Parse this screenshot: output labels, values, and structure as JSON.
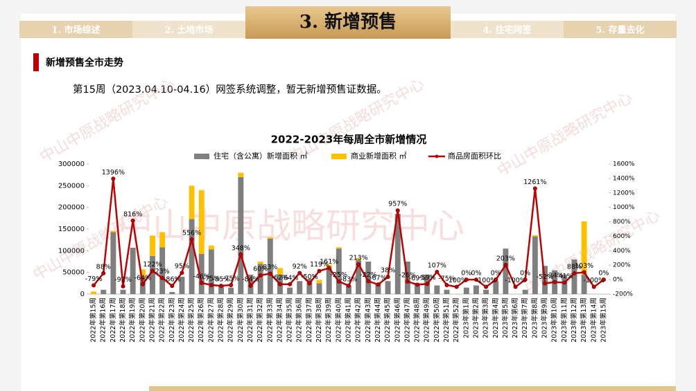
{
  "tabs": [
    "1. 市场综述",
    "2. 土地市场",
    "3. 新增预售",
    "4. 住宅网签",
    "5. 存量去化"
  ],
  "active_tab": 2,
  "section_title": "新增预售全市走势",
  "note": "第15周（2023.04.10-04.16）网签系统调整，暂无新增预售证数据。",
  "watermark": "中山中原战略研究中心",
  "chart_data": {
    "type": "bar-line",
    "title": "2022-2023年每周全市新增情况",
    "categories": [
      "2022年第15周",
      "2022年第16周",
      "2022年第17周",
      "2022年第18周",
      "2022年第19周",
      "2022年第20周",
      "2022年第21周",
      "2022年第22周",
      "2022年第23周",
      "2022年第24周",
      "2022年第25周",
      "2022年第26周",
      "2022年第27周",
      "2022年第28周",
      "2022年第29周",
      "2022年第30周",
      "2022年第31周",
      "2022年第32周",
      "2022年第33周",
      "2022年第34周",
      "2022年第35周",
      "2022年第36周",
      "2022年第37周",
      "2022年第38周",
      "2022年第39周",
      "2022年第40周",
      "2022年第41周",
      "2022年第42周",
      "2022年第43周",
      "2022年第44周",
      "2022年第45周",
      "2022年第46周",
      "2022年第47周",
      "2022年第48周",
      "2022年第49周",
      "2022年第50周",
      "2022年第51周",
      "2022年第52周",
      "2023年第1周",
      "2023年第2周",
      "2023年第3周",
      "2023年第4周",
      "2023年第5周",
      "2023年第6周",
      "2023年第7周",
      "2023年第8周",
      "2023年第9周",
      "2023年第10周",
      "2023年第11周",
      "2023年第12周",
      "2023年第13周",
      "2023年第14周",
      "2023年第15周"
    ],
    "series": [
      {
        "name": "住宅（含公寓）新增面积 ㎡",
        "type": "bar",
        "color": "#7f7f7f",
        "values": [
          0,
          10000,
          143000,
          10000,
          107000,
          40000,
          88000,
          108000,
          5000,
          40000,
          173000,
          93000,
          103000,
          20000,
          15000,
          270000,
          45000,
          70000,
          128000,
          45000,
          15000,
          30000,
          35000,
          25000,
          60000,
          105000,
          20000,
          78000,
          75000,
          25000,
          30000,
          185000,
          75000,
          25000,
          45000,
          20000,
          10000,
          0,
          15000,
          20000,
          10000,
          30000,
          105000,
          0,
          10000,
          133000,
          65000,
          55000,
          45000,
          80000,
          45000,
          0,
          0
        ]
      },
      {
        "name": "商业新增面积 ㎡",
        "type": "bar",
        "color": "#ffc000",
        "values": [
          6000,
          0,
          3000,
          0,
          0,
          17000,
          47000,
          35000,
          0,
          0,
          77000,
          147000,
          9000,
          0,
          0,
          10000,
          0,
          5000,
          3000,
          15000,
          0,
          0,
          0,
          8000,
          8000,
          3000,
          0,
          5000,
          0,
          0,
          0,
          0,
          0,
          0,
          0,
          0,
          0,
          0,
          0,
          0,
          0,
          0,
          0,
          0,
          0,
          3000,
          0,
          0,
          0,
          0,
          123000,
          0,
          0
        ]
      },
      {
        "name": "商品房面积环比",
        "type": "line",
        "axis": "y2",
        "color": "#c00000",
        "values": [
          -79,
          88,
          1396,
          -92,
          816,
          -64,
          122,
          23,
          -86,
          95,
          556,
          -46,
          -75,
          -85,
          -75,
          348,
          -84,
          60,
          83,
          -62,
          -64,
          92,
          -50,
          119,
          161,
          -25,
          -83,
          213,
          -22,
          -67,
          38,
          957,
          -26,
          -69,
          -59,
          107,
          -75,
          -100,
          0,
          0,
          -100,
          0,
          203,
          -100,
          0,
          1261,
          -52,
          -34,
          -41,
          88,
          103,
          -100,
          0
        ],
        "value_labels": [
          "-79%",
          "88%",
          "1396%",
          "-92%",
          "816%",
          "-64%",
          "122%",
          "23%",
          "-86%",
          "95%",
          "556%",
          "-46%",
          "-75%",
          "-85%",
          "-75%",
          "348%",
          "-84%",
          "60%",
          "83%",
          "-62%",
          "-64%",
          "92%",
          "-50%",
          "119%",
          "161%",
          "-25%",
          "-83%",
          "213%",
          "-22%",
          "-67%",
          "38%",
          "957%",
          "-26%",
          "-69%",
          "-59%",
          "107%",
          "-75%",
          "-100%",
          "0%",
          "0%",
          "-100%",
          "0%",
          "203%",
          "-100%",
          "0%",
          "1261%",
          "-52%",
          "-34%",
          "-41%",
          "88%",
          "103%",
          "-100%",
          "0%"
        ]
      }
    ],
    "ylim": [
      0,
      300000
    ],
    "yticks": [
      0,
      50000,
      100000,
      150000,
      200000,
      250000,
      300000
    ],
    "y2lim": [
      -200,
      1600
    ],
    "y2ticks": [
      {
        "value": -200,
        "label": "-200%"
      },
      {
        "value": 0,
        "label": "0%"
      },
      {
        "value": 200,
        "label": "200%"
      },
      {
        "value": 400,
        "label": "400%"
      },
      {
        "value": 600,
        "label": "600%"
      },
      {
        "value": 800,
        "label": "800%"
      },
      {
        "value": 1000,
        "label": "1000%"
      },
      {
        "value": 1200,
        "label": "1200%"
      },
      {
        "value": 1400,
        "label": "1400%"
      },
      {
        "value": 1600,
        "label": "1600%"
      }
    ],
    "stacked": true
  }
}
